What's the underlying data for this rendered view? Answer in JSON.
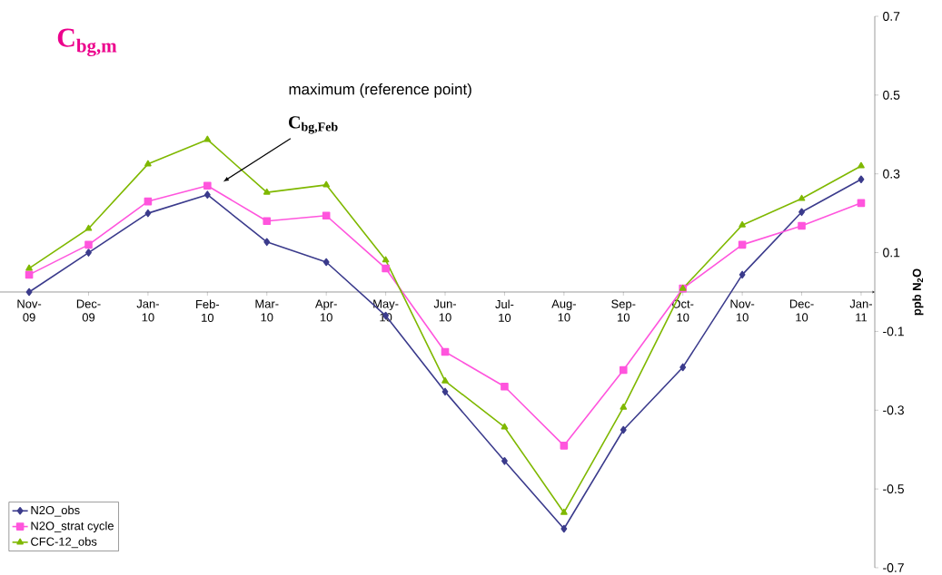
{
  "chart_data": {
    "type": "line",
    "categories": [
      "Nov-09",
      "Dec-09",
      "Jan-10",
      "Feb-10",
      "Mar-10",
      "Apr-10",
      "May-10",
      "Jun-10",
      "Jul-10",
      "Aug-10",
      "Sep-10",
      "Oct-10",
      "Nov-10",
      "Dec-10",
      "Jan-11"
    ],
    "series": [
      {
        "name": "N2O_obs",
        "color": "#3b3b8c",
        "marker": "diamond",
        "values": [
          0.0,
          0.1,
          0.2,
          0.247,
          0.127,
          0.076,
          -0.06,
          -0.253,
          -0.429,
          -0.601,
          -0.35,
          -0.191,
          0.044,
          0.203,
          0.286
        ]
      },
      {
        "name": "N2O_strat cycle",
        "color": "#ff55dd",
        "marker": "square",
        "values": [
          0.044,
          0.12,
          0.23,
          0.27,
          0.18,
          0.194,
          0.06,
          -0.152,
          -0.24,
          -0.39,
          -0.198,
          0.009,
          0.12,
          0.168,
          0.226
        ]
      },
      {
        "name": "CFC-12_obs",
        "color": "#7fb800",
        "marker": "triangle",
        "values": [
          0.06,
          0.161,
          0.325,
          0.387,
          0.253,
          0.272,
          0.081,
          -0.226,
          -0.343,
          -0.56,
          -0.293,
          0.009,
          0.17,
          0.237,
          0.32
        ]
      }
    ],
    "ylabel": "ppb N$_{2}$O",
    "ylim": [
      -0.7,
      0.7
    ],
    "yticks": [
      -0.7,
      -0.5,
      -0.3,
      -0.1,
      0.1,
      0.3,
      0.5,
      0.7
    ],
    "annotations": [
      "C$_{bg,m}$",
      "maximum (reference point)",
      "C$_{bg,Feb}$"
    ],
    "legend": "bottom left",
    "line_style": "solid"
  }
}
